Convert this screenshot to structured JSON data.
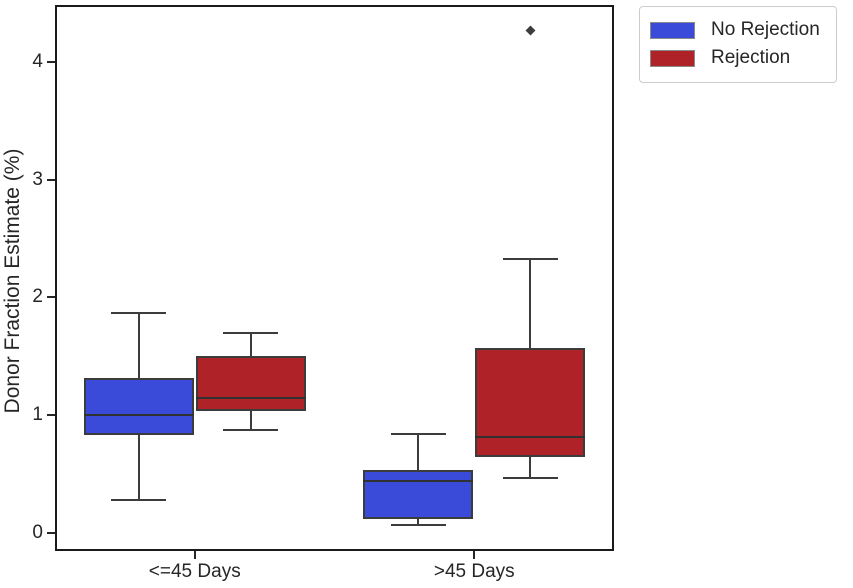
{
  "chart_data": {
    "type": "boxplot",
    "title": "",
    "xlabel": "",
    "ylabel": "Donor Fraction Estimate (%)",
    "categories": [
      "<=45 Days",
      ">45 Days"
    ],
    "yticks": [
      0,
      1,
      2,
      3,
      4
    ],
    "ylim": [
      -0.15,
      4.48
    ],
    "grid": false,
    "legend_position": "upper-right-outside",
    "series": [
      {
        "name": "No Rejection",
        "color": "#3A4BD9",
        "boxes": [
          {
            "category": "<=45 Days",
            "whislo": 0.28,
            "q1": 0.83,
            "median": 1.0,
            "q3": 1.32,
            "whishi": 1.87,
            "outliers": []
          },
          {
            "category": ">45 Days",
            "whislo": 0.07,
            "q1": 0.12,
            "median": 0.44,
            "q3": 0.54,
            "whishi": 0.84,
            "outliers": []
          }
        ]
      },
      {
        "name": "Rejection",
        "color": "#AF2228",
        "boxes": [
          {
            "category": "<=45 Days",
            "whislo": 0.88,
            "q1": 1.04,
            "median": 1.15,
            "q3": 1.5,
            "whishi": 1.7,
            "outliers": []
          },
          {
            "category": ">45 Days",
            "whislo": 0.47,
            "q1": 0.65,
            "median": 0.82,
            "q3": 1.57,
            "whishi": 2.33,
            "outliers": [
              4.26
            ]
          }
        ]
      }
    ]
  }
}
